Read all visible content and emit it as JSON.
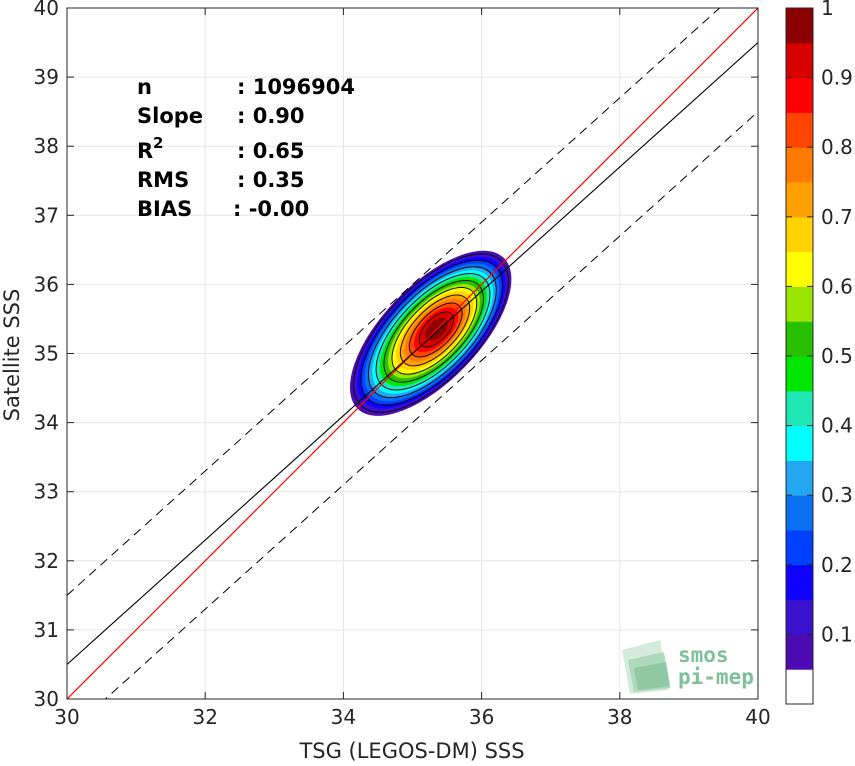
{
  "chart_data": {
    "type": "heatmap",
    "title": "",
    "xlabel": "TSG (LEGOS-DM) SSS",
    "ylabel": "Satellite SSS",
    "xlim": [
      30,
      40
    ],
    "ylim": [
      30,
      40
    ],
    "x_ticks": [
      "30",
      "32",
      "34",
      "36",
      "38",
      "40"
    ],
    "y_ticks": [
      "30",
      "31",
      "32",
      "33",
      "34",
      "35",
      "36",
      "37",
      "38",
      "39",
      "40"
    ],
    "grid": true,
    "density_peak": {
      "x": 35.35,
      "y": 35.35
    },
    "identity_line": {
      "color": "#ff0000",
      "from": [
        30,
        30
      ],
      "to": [
        40,
        40
      ]
    },
    "regression_line": {
      "color": "#000000",
      "slope": 0.9,
      "intercept_at_x30": 30.5
    },
    "confidence_lines": {
      "style": "dashed",
      "offset": 1.0
    },
    "colorbar": {
      "ticks": [
        "0.1",
        "0.2",
        "0.3",
        "0.4",
        "0.5",
        "0.6",
        "0.7",
        "0.8",
        "0.9",
        "1"
      ],
      "range": [
        0,
        1
      ],
      "colors": [
        "#ffffff",
        "#4d0cb3",
        "#3a11cc",
        "#1000ff",
        "#0040ff",
        "#0a70f2",
        "#22a7f0",
        "#00ffff",
        "#1ee6b4",
        "#00e600",
        "#28c000",
        "#9ae600",
        "#ffff00",
        "#ffd200",
        "#ffa000",
        "#ff7a00",
        "#ff4500",
        "#ff0000",
        "#d70000",
        "#8b0000"
      ]
    }
  },
  "stats": {
    "n_label": "n",
    "n_value": ": 1096904",
    "slope_label": "Slope",
    "slope_value": ": 0.90",
    "r2_label": "R",
    "r2_sup": "2",
    "r2_value": ": 0.65",
    "rms_label": "RMS",
    "rms_value": ": 0.35",
    "bias_label": "BIAS",
    "bias_value": ": -0.00"
  },
  "logo": {
    "line1": "smos",
    "line2": "pi-mep"
  }
}
